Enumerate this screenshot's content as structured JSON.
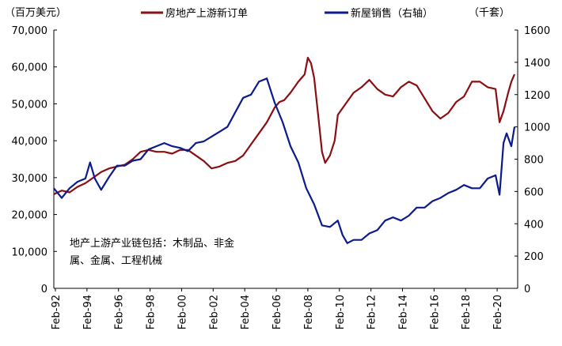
{
  "chart_data": {
    "type": "line",
    "left_axis_unit": "（百万美元）",
    "right_axis_unit": "（千套）",
    "y_left": {
      "min": 0,
      "max": 70000,
      "ticks": [
        "0",
        "10,000",
        "20,000",
        "30,000",
        "40,000",
        "50,000",
        "60,000",
        "70,000"
      ]
    },
    "y_right": {
      "min": 0,
      "max": 1600,
      "ticks": [
        "0",
        "200",
        "400",
        "600",
        "800",
        "1000",
        "1200",
        "1400",
        "1600"
      ]
    },
    "x_range": [
      1992.0,
      2021.4
    ],
    "x_ticks": [
      {
        "label": "Feb-92",
        "x": 1992.1
      },
      {
        "label": "Feb-94",
        "x": 1994.1
      },
      {
        "label": "Feb-96",
        "x": 1996.1
      },
      {
        "label": "Feb-98",
        "x": 1998.1
      },
      {
        "label": "Feb-00",
        "x": 2000.1
      },
      {
        "label": "Feb-02",
        "x": 2002.1
      },
      {
        "label": "Feb-04",
        "x": 2004.1
      },
      {
        "label": "Feb-06",
        "x": 2006.1
      },
      {
        "label": "Feb-08",
        "x": 2008.1
      },
      {
        "label": "Feb-10",
        "x": 2010.1
      },
      {
        "label": "Feb-12",
        "x": 2012.1
      },
      {
        "label": "Feb-14",
        "x": 2014.1
      },
      {
        "label": "Feb-16",
        "x": 2016.1
      },
      {
        "label": "Feb-18",
        "x": 2018.1
      },
      {
        "label": "Feb-20",
        "x": 2020.1
      }
    ],
    "series": [
      {
        "name": "房地产上游新订单",
        "axis": "left",
        "color": "#8B0E12",
        "points": [
          [
            1992.0,
            25500
          ],
          [
            1992.5,
            26500
          ],
          [
            1993.0,
            26000
          ],
          [
            1993.5,
            27500
          ],
          [
            1994.0,
            28500
          ],
          [
            1994.5,
            30000
          ],
          [
            1995.0,
            31500
          ],
          [
            1995.5,
            32500
          ],
          [
            1996.0,
            33000
          ],
          [
            1996.5,
            33500
          ],
          [
            1997.0,
            35000
          ],
          [
            1997.5,
            37000
          ],
          [
            1998.0,
            37500
          ],
          [
            1998.5,
            37000
          ],
          [
            1999.0,
            37000
          ],
          [
            1999.5,
            36500
          ],
          [
            2000.0,
            37500
          ],
          [
            2000.5,
            37500
          ],
          [
            2001.0,
            36000
          ],
          [
            2001.5,
            34500
          ],
          [
            2002.0,
            32500
          ],
          [
            2002.5,
            33000
          ],
          [
            2003.0,
            34000
          ],
          [
            2003.5,
            34500
          ],
          [
            2004.0,
            36000
          ],
          [
            2004.5,
            39000
          ],
          [
            2005.0,
            42000
          ],
          [
            2005.5,
            45000
          ],
          [
            2006.0,
            49000
          ],
          [
            2006.3,
            50500
          ],
          [
            2006.6,
            51000
          ],
          [
            2007.0,
            53000
          ],
          [
            2007.5,
            56000
          ],
          [
            2007.9,
            58000
          ],
          [
            2008.1,
            62500
          ],
          [
            2008.3,
            61000
          ],
          [
            2008.5,
            57000
          ],
          [
            2008.8,
            45000
          ],
          [
            2009.0,
            37000
          ],
          [
            2009.2,
            34000
          ],
          [
            2009.5,
            36000
          ],
          [
            2009.8,
            40000
          ],
          [
            2010.0,
            47000
          ],
          [
            2010.5,
            50000
          ],
          [
            2011.0,
            53000
          ],
          [
            2011.5,
            54500
          ],
          [
            2012.0,
            56500
          ],
          [
            2012.5,
            54000
          ],
          [
            2013.0,
            52500
          ],
          [
            2013.5,
            52000
          ],
          [
            2014.0,
            54500
          ],
          [
            2014.5,
            56000
          ],
          [
            2015.0,
            55000
          ],
          [
            2015.5,
            51500
          ],
          [
            2016.0,
            48000
          ],
          [
            2016.5,
            46000
          ],
          [
            2017.0,
            47500
          ],
          [
            2017.5,
            50500
          ],
          [
            2018.0,
            52000
          ],
          [
            2018.5,
            56000
          ],
          [
            2019.0,
            56000
          ],
          [
            2019.5,
            54500
          ],
          [
            2020.0,
            54000
          ],
          [
            2020.25,
            45000
          ],
          [
            2020.5,
            48000
          ],
          [
            2020.8,
            53000
          ],
          [
            2021.0,
            56000
          ],
          [
            2021.2,
            58000
          ]
        ]
      },
      {
        "name": "新屋销售（右轴）",
        "axis": "right",
        "color": "#0B1A8C",
        "points": [
          [
            1992.0,
            620
          ],
          [
            1992.5,
            560
          ],
          [
            1993.0,
            620
          ],
          [
            1993.5,
            660
          ],
          [
            1994.0,
            680
          ],
          [
            1994.3,
            780
          ],
          [
            1994.6,
            680
          ],
          [
            1995.0,
            610
          ],
          [
            1995.5,
            690
          ],
          [
            1996.0,
            760
          ],
          [
            1996.5,
            760
          ],
          [
            1997.0,
            790
          ],
          [
            1997.5,
            800
          ],
          [
            1998.0,
            860
          ],
          [
            1998.5,
            880
          ],
          [
            1999.0,
            900
          ],
          [
            1999.5,
            880
          ],
          [
            2000.0,
            870
          ],
          [
            2000.5,
            850
          ],
          [
            2001.0,
            900
          ],
          [
            2001.5,
            910
          ],
          [
            2002.0,
            940
          ],
          [
            2002.5,
            970
          ],
          [
            2003.0,
            1000
          ],
          [
            2003.5,
            1090
          ],
          [
            2004.0,
            1180
          ],
          [
            2004.5,
            1200
          ],
          [
            2005.0,
            1280
          ],
          [
            2005.5,
            1300
          ],
          [
            2006.0,
            1150
          ],
          [
            2006.5,
            1030
          ],
          [
            2007.0,
            880
          ],
          [
            2007.5,
            780
          ],
          [
            2008.0,
            620
          ],
          [
            2008.5,
            520
          ],
          [
            2009.0,
            390
          ],
          [
            2009.5,
            380
          ],
          [
            2010.0,
            420
          ],
          [
            2010.3,
            330
          ],
          [
            2010.6,
            280
          ],
          [
            2011.0,
            300
          ],
          [
            2011.5,
            300
          ],
          [
            2012.0,
            340
          ],
          [
            2012.5,
            360
          ],
          [
            2013.0,
            420
          ],
          [
            2013.5,
            440
          ],
          [
            2014.0,
            420
          ],
          [
            2014.5,
            450
          ],
          [
            2015.0,
            500
          ],
          [
            2015.5,
            500
          ],
          [
            2016.0,
            540
          ],
          [
            2016.5,
            560
          ],
          [
            2017.0,
            590
          ],
          [
            2017.5,
            610
          ],
          [
            2018.0,
            640
          ],
          [
            2018.5,
            620
          ],
          [
            2019.0,
            620
          ],
          [
            2019.5,
            680
          ],
          [
            2020.0,
            700
          ],
          [
            2020.25,
            580
          ],
          [
            2020.5,
            900
          ],
          [
            2020.7,
            960
          ],
          [
            2021.0,
            880
          ],
          [
            2021.2,
            1000
          ]
        ]
      }
    ],
    "legend_position": "top",
    "annotation": "地产上游产业链包括：木制品、非金属、金属、工程机械",
    "annotation_lines": [
      "地产上游产业链包括：木制品、非金",
      "属、金属、工程机械"
    ],
    "grid": false
  }
}
